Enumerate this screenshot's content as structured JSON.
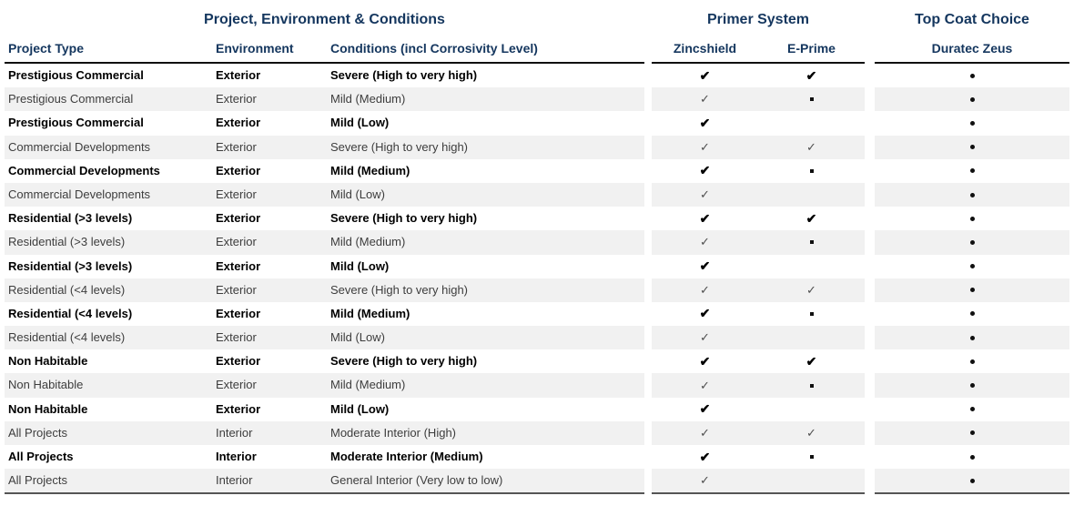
{
  "colors": {
    "heading_navy": "#14365e",
    "row_stripe": "#f1f1f1",
    "header_rule": "#101010",
    "bottom_rule": "#555555",
    "bold_text": "#000000",
    "regular_text": "#3d3d3d"
  },
  "header": {
    "groups": [
      {
        "label": "Project, Environment & Conditions"
      },
      {
        "label": "Primer System"
      },
      {
        "label": "Top Coat Choice"
      }
    ],
    "columns": {
      "project_type": "Project Type",
      "environment": "Environment",
      "conditions": "Conditions (incl Corrosivity Level)",
      "zincshield": "Zincshield",
      "eprime": "E-Prime",
      "duratec": "Duratec Zeus"
    }
  },
  "marks": {
    "check_bold_glyph": "✔",
    "check_thin_glyph": "✓"
  },
  "rows": [
    {
      "project_type": "Prestigious Commercial",
      "environment": "Exterior",
      "conditions": "Severe (High to very high)",
      "zincshield": "check",
      "eprime": "check",
      "duratec": "bullet",
      "bold": true
    },
    {
      "project_type": "Prestigious Commercial",
      "environment": "Exterior",
      "conditions": "Mild (Medium)",
      "zincshield": "check",
      "eprime": "square",
      "duratec": "bullet",
      "bold": false
    },
    {
      "project_type": "Prestigious Commercial",
      "environment": "Exterior",
      "conditions": "Mild (Low)",
      "zincshield": "check",
      "eprime": "none",
      "duratec": "bullet",
      "bold": true
    },
    {
      "project_type": "Commercial Developments",
      "environment": "Exterior",
      "conditions": "Severe (High to very high)",
      "zincshield": "check",
      "eprime": "check",
      "duratec": "bullet",
      "bold": false
    },
    {
      "project_type": "Commercial Developments",
      "environment": "Exterior",
      "conditions": "Mild (Medium)",
      "zincshield": "check",
      "eprime": "square",
      "duratec": "bullet",
      "bold": true
    },
    {
      "project_type": "Commercial Developments",
      "environment": "Exterior",
      "conditions": "Mild (Low)",
      "zincshield": "check",
      "eprime": "none",
      "duratec": "bullet",
      "bold": false
    },
    {
      "project_type": "Residential (>3 levels)",
      "environment": "Exterior",
      "conditions": "Severe (High to very high)",
      "zincshield": "check",
      "eprime": "check",
      "duratec": "bullet",
      "bold": true
    },
    {
      "project_type": "Residential (>3 levels)",
      "environment": "Exterior",
      "conditions": "Mild (Medium)",
      "zincshield": "check",
      "eprime": "square",
      "duratec": "bullet",
      "bold": false
    },
    {
      "project_type": "Residential (>3 levels)",
      "environment": "Exterior",
      "conditions": "Mild (Low)",
      "zincshield": "check",
      "eprime": "none",
      "duratec": "bullet",
      "bold": true
    },
    {
      "project_type": "Residential (<4 levels)",
      "environment": "Exterior",
      "conditions": "Severe (High to very high)",
      "zincshield": "check",
      "eprime": "check",
      "duratec": "bullet",
      "bold": false
    },
    {
      "project_type": "Residential (<4 levels)",
      "environment": "Exterior",
      "conditions": "Mild (Medium)",
      "zincshield": "check",
      "eprime": "square",
      "duratec": "bullet",
      "bold": true
    },
    {
      "project_type": "Residential (<4 levels)",
      "environment": "Exterior",
      "conditions": "Mild (Low)",
      "zincshield": "check",
      "eprime": "none",
      "duratec": "bullet",
      "bold": false
    },
    {
      "project_type": "Non Habitable",
      "environment": "Exterior",
      "conditions": "Severe (High to very high)",
      "zincshield": "check",
      "eprime": "check",
      "duratec": "bullet",
      "bold": true
    },
    {
      "project_type": "Non Habitable",
      "environment": "Exterior",
      "conditions": "Mild (Medium)",
      "zincshield": "check",
      "eprime": "square",
      "duratec": "bullet",
      "bold": false
    },
    {
      "project_type": "Non Habitable",
      "environment": "Exterior",
      "conditions": "Mild (Low)",
      "zincshield": "check",
      "eprime": "none",
      "duratec": "bullet",
      "bold": true
    },
    {
      "project_type": "All Projects",
      "environment": "Interior",
      "conditions": "Moderate Interior (High)",
      "zincshield": "check",
      "eprime": "check",
      "duratec": "bullet",
      "bold": false
    },
    {
      "project_type": "All Projects",
      "environment": "Interior",
      "conditions": "Moderate Interior (Medium)",
      "zincshield": "check",
      "eprime": "square",
      "duratec": "bullet",
      "bold": true
    },
    {
      "project_type": "All Projects",
      "environment": "Interior",
      "conditions": "General Interior (Very low to low)",
      "zincshield": "check",
      "eprime": "none",
      "duratec": "bullet",
      "bold": false
    }
  ]
}
